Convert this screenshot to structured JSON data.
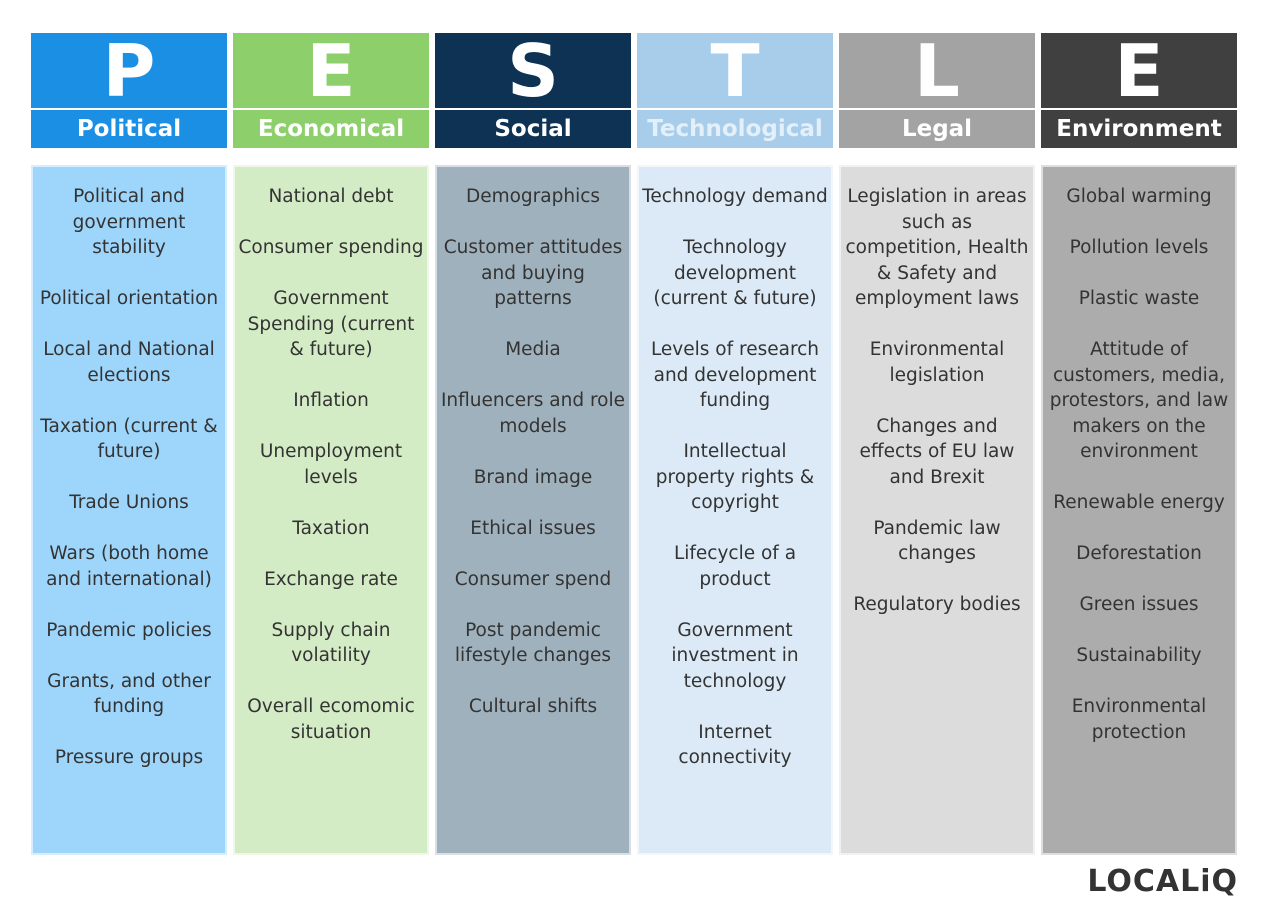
{
  "columns": [
    {
      "letter": "P",
      "title": "Political",
      "items": [
        "Political and government stability",
        "Political orientation",
        "Local and National elections",
        "Taxation (current & future)",
        "Trade Unions",
        "Wars (both home and international)",
        "Pandemic policies",
        "Grants, and other funding",
        "Pressure groups"
      ]
    },
    {
      "letter": "E",
      "title": "Economical",
      "items": [
        "National debt",
        "Consumer spending",
        "Government Spending (current & future)",
        "Inflation",
        "Unemployment levels",
        "Taxation",
        "Exchange rate",
        "Supply chain volatility",
        "Overall ecomomic situation"
      ]
    },
    {
      "letter": "S",
      "title": "Social",
      "items": [
        "Demographics",
        "Customer attitudes and buying patterns",
        "Media",
        "Influencers and role models",
        "Brand image",
        "Ethical issues",
        "Consumer spend",
        "Post pandemic lifestyle changes",
        "Cultural shifts"
      ]
    },
    {
      "letter": "T",
      "title": "Technological",
      "items": [
        "Technology demand",
        "Technology development (current & future)",
        "Levels of research and development funding",
        "Intellectual property rights & copyright",
        "Lifecycle of a product",
        "Government investment in technology",
        "Internet connectivity"
      ]
    },
    {
      "letter": "L",
      "title": "Legal",
      "items": [
        "Legislation in areas such as competition, Health & Safety and employment laws",
        "Environmental legislation",
        "Changes and effects of EU law and Brexit",
        "Pandemic law changes",
        "Regulatory bodies"
      ]
    },
    {
      "letter": "E",
      "title": "Environment",
      "items": [
        "Global warming",
        "Pollution levels",
        "Plastic waste",
        "Attitude of customers, media, protestors, and law makers on the environment",
        "Renewable energy",
        "Deforestation",
        "Green issues",
        "Sustainability",
        "Environmental protection"
      ]
    }
  ],
  "logo": "LOCALiQ"
}
